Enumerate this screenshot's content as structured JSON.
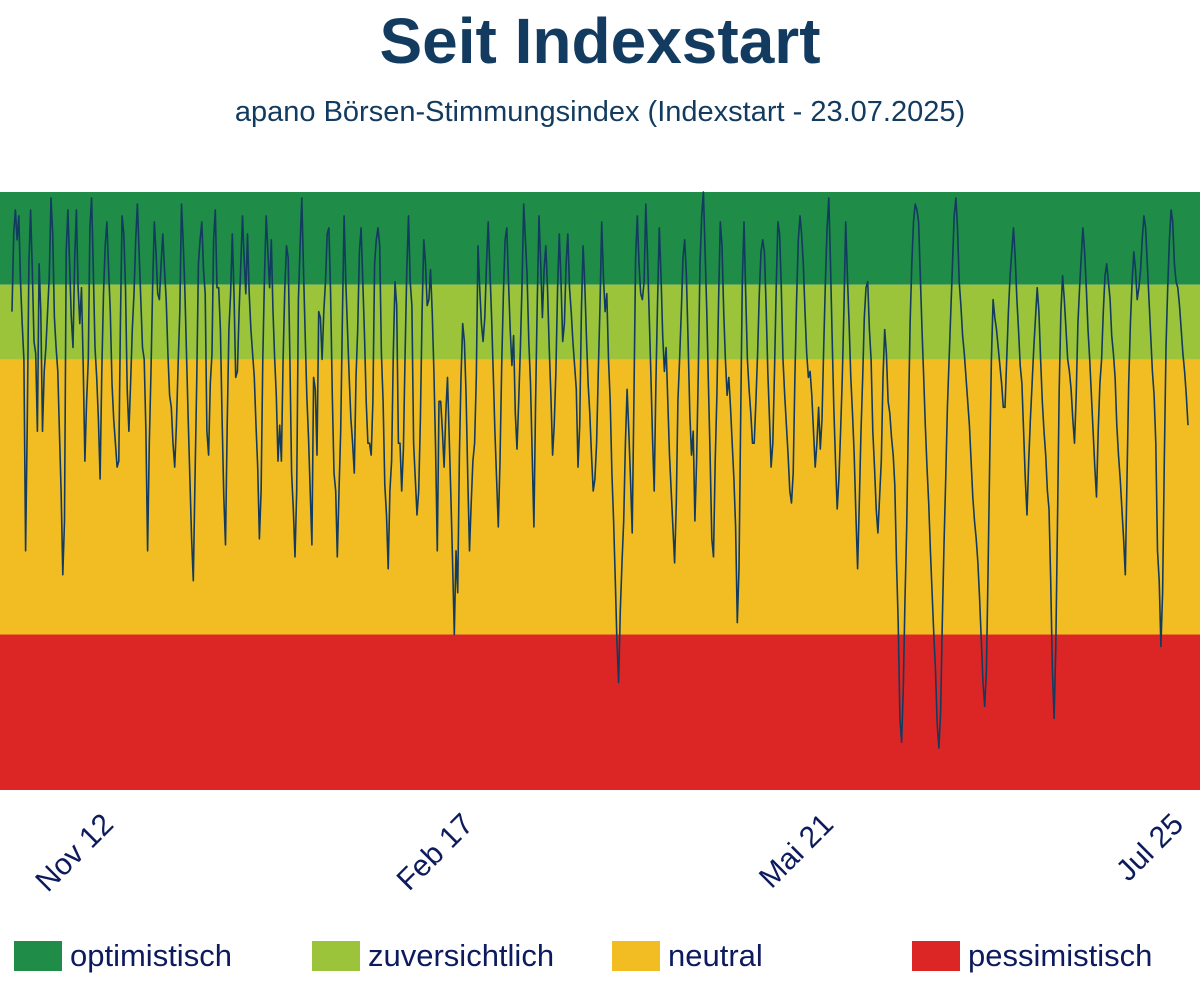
{
  "title": "Seit Indexstart",
  "subtitle": "apano Börsen-Stimmungsindex (Indexstart - 23.07.2025)",
  "colors": {
    "optimistisch": "#1f8c48",
    "zuversichtlich": "#9bc43a",
    "neutral": "#f2bd23",
    "pessimistisch": "#dc2626",
    "line": "#123b5f"
  },
  "legend": [
    {
      "label": "optimistisch",
      "color": "#1f8c48"
    },
    {
      "label": "zuversichtlich",
      "color": "#9bc43a"
    },
    {
      "label": "neutral",
      "color": "#f2bd23"
    },
    {
      "label": "pessimistisch",
      "color": "#dc2626"
    }
  ],
  "chart_data": {
    "type": "line",
    "title": "Seit Indexstart",
    "subtitle": "apano Börsen-Stimmungsindex (Indexstart - 23.07.2025)",
    "xlabel": "",
    "ylabel": "",
    "x_ticks": [
      "Nov 12",
      "Feb 17",
      "Mai 21",
      "Jul 25"
    ],
    "ylim": [
      0,
      100
    ],
    "grid": false,
    "legend_position": "bottom",
    "zones": [
      {
        "name": "optimistisch",
        "from": 84.5,
        "to": 100,
        "color": "#1f8c48"
      },
      {
        "name": "zuversichtlich",
        "from": 72,
        "to": 84.5,
        "color": "#9bc43a"
      },
      {
        "name": "neutral",
        "from": 26,
        "to": 72,
        "color": "#f2bd23"
      },
      {
        "name": "pessimistisch",
        "from": 0,
        "to": 26,
        "color": "#dc2626"
      }
    ],
    "series": [
      {
        "values": [
          80,
          93,
          97,
          92,
          96,
          85,
          78,
          72,
          40,
          62,
          88,
          97,
          87,
          75,
          73,
          60,
          88,
          80,
          60,
          70,
          74,
          80,
          86,
          99,
          93,
          79,
          74,
          70,
          60,
          50,
          36,
          45,
          90,
          97,
          88,
          79,
          74,
          89,
          97,
          84,
          78,
          84,
          71,
          55,
          65,
          72,
          94,
          99,
          87,
          74,
          69,
          62,
          52,
          70,
          83,
          91,
          95,
          87,
          80,
          68,
          62,
          58,
          54,
          55,
          78,
          96,
          93,
          84,
          67,
          60,
          68,
          77,
          83,
          92,
          98,
          90,
          82,
          74,
          72,
          60,
          40,
          58,
          70,
          84,
          95,
          90,
          83,
          82,
          88,
          93,
          87,
          82,
          73,
          66,
          64,
          58,
          54,
          61,
          71,
          80,
          98,
          92,
          84,
          73,
          62,
          52,
          42,
          35,
          52,
          68,
          88,
          92,
          95,
          87,
          83,
          60,
          56,
          68,
          73,
          92,
          97,
          84,
          84,
          77,
          62,
          49,
          41,
          61,
          77,
          83,
          93,
          83,
          69,
          70,
          80,
          88,
          96,
          89,
          83,
          93,
          83,
          77,
          73,
          69,
          61,
          54,
          42,
          50,
          72,
          86,
          96,
          90,
          84,
          92,
          80,
          72,
          66,
          55,
          61,
          55,
          72,
          84,
          91,
          89,
          72,
          53,
          47,
          39,
          50,
          82,
          91,
          99,
          87,
          76,
          66,
          59,
          50,
          41,
          69,
          67,
          56,
          80,
          79,
          72,
          80,
          85,
          93,
          94,
          83,
          66,
          53,
          50,
          39,
          50,
          60,
          79,
          96,
          85,
          77,
          69,
          62,
          58,
          53,
          69,
          77,
          90,
          94,
          85,
          76,
          65,
          58,
          58,
          56,
          65,
          88,
          92,
          94,
          91,
          73,
          65,
          51,
          46,
          37,
          50,
          55,
          73,
          85,
          81,
          58,
          58,
          50,
          57,
          73,
          87,
          96,
          85,
          81,
          58,
          52,
          46,
          50,
          62,
          80,
          92,
          88,
          81,
          82,
          87,
          80,
          70,
          57,
          40,
          65,
          65,
          60,
          54,
          63,
          69,
          59,
          49,
          38,
          26,
          40,
          33,
          56,
          69,
          78,
          75,
          66,
          52,
          40,
          48,
          55,
          58,
          69,
          91,
          84,
          78,
          75,
          79,
          88,
          95,
          87,
          79,
          70,
          60,
          52,
          44,
          55,
          71,
          83,
          92,
          94,
          85,
          77,
          71,
          76,
          63,
          57,
          65,
          74,
          85,
          98,
          92,
          86,
          75,
          68,
          56,
          44,
          65,
          82,
          96,
          88,
          79,
          87,
          91,
          84,
          74,
          66,
          56,
          61,
          70,
          84,
          93,
          85,
          75,
          78,
          88,
          93,
          84,
          80,
          75,
          71,
          67,
          54,
          61,
          80,
          91,
          85,
          76,
          68,
          63,
          56,
          50,
          52,
          58,
          70,
          81,
          95,
          86,
          80,
          83,
          72,
          65,
          53,
          45,
          35,
          25,
          18,
          30,
          38,
          45,
          58,
          67,
          60,
          52,
          43,
          65,
          89,
          96,
          88,
          83,
          82,
          85,
          98,
          90,
          80,
          70,
          59,
          50,
          68,
          82,
          94,
          86,
          76,
          70,
          74,
          65,
          56,
          50,
          44,
          38,
          48,
          65,
          72,
          80,
          89,
          92,
          86,
          75,
          63,
          56,
          60,
          45,
          55,
          70,
          88,
          96,
          100,
          90,
          80,
          68,
          56,
          42,
          39,
          55,
          66,
          82,
          95,
          91,
          80,
          72,
          66,
          69,
          64,
          58,
          52,
          44,
          28,
          37,
          61,
          85,
          95,
          83,
          72,
          67,
          63,
          58,
          58,
          65,
          73,
          83,
          90,
          92,
          90,
          81,
          70,
          62,
          54,
          58,
          70,
          84,
          95,
          93,
          84,
          72,
          66,
          61,
          56,
          50,
          48,
          53,
          69,
          82,
          92,
          96,
          93,
          88,
          80,
          73,
          69,
          70,
          66,
          60,
          54,
          58,
          64,
          57,
          62,
          74,
          85,
          94,
          99,
          88,
          76,
          64,
          55,
          47,
          52,
          60,
          69,
          81,
          95,
          86,
          78,
          69,
          63,
          56,
          46,
          37,
          48,
          60,
          69,
          79,
          84,
          85,
          77,
          72,
          60,
          54,
          47,
          43,
          49,
          55,
          69,
          77,
          73,
          65,
          63,
          59,
          56,
          51,
          38,
          28,
          12,
          8,
          17,
          32,
          44,
          62,
          78,
          88,
          95,
          98,
          97,
          95,
          86,
          77,
          69,
          61,
          54,
          48,
          40,
          33,
          26,
          20,
          11,
          7,
          13,
          28,
          41,
          52,
          64,
          72,
          80,
          88,
          96,
          99,
          94,
          85,
          81,
          76,
          73,
          69,
          65,
          61,
          55,
          49,
          45,
          42,
          38,
          32,
          25,
          18,
          14,
          20,
          36,
          55,
          72,
          82,
          79,
          77,
          74,
          71,
          68,
          64,
          64,
          72,
          80,
          86,
          90,
          94,
          89,
          82,
          77,
          71,
          68,
          60,
          52,
          46,
          55,
          62,
          68,
          74,
          79,
          84,
          80,
          72,
          65,
          60,
          56,
          50,
          47,
          35,
          20,
          12,
          24,
          45,
          67,
          80,
          86,
          82,
          77,
          72,
          70,
          67,
          62,
          58,
          66,
          78,
          84,
          89,
          94,
          90,
          84,
          77,
          72,
          66,
          60,
          54,
          49,
          60,
          68,
          72,
          80,
          86,
          88,
          85,
          82,
          76,
          73,
          69,
          61,
          56,
          52,
          47,
          42,
          36,
          52,
          68,
          78,
          85,
          90,
          87,
          82,
          84,
          87,
          92,
          96,
          94,
          88,
          82,
          76,
          70,
          66,
          58,
          40,
          35,
          24,
          33,
          55,
          74,
          84,
          92,
          97,
          95,
          88,
          85,
          84,
          81,
          77,
          73,
          70,
          66,
          61
        ]
      }
    ]
  }
}
